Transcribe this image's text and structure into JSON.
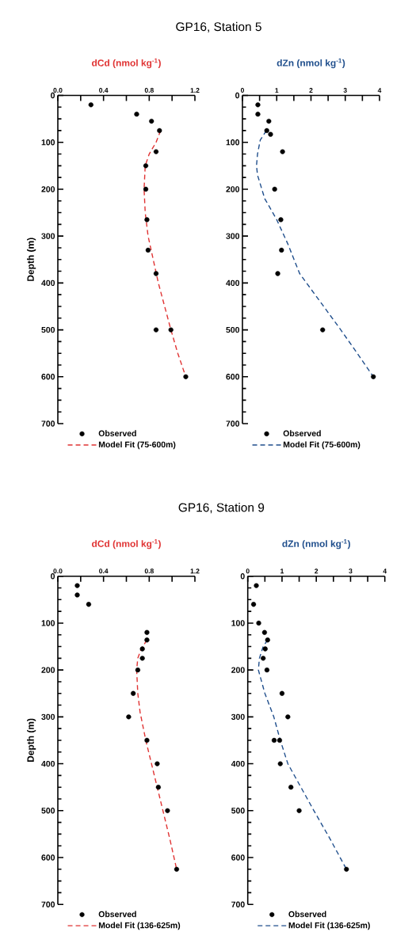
{
  "chart_data": [
    {
      "type": "scatter",
      "title": "GP16, Station 5",
      "xlabel": "dCd (nmol kg$^{-1}$)",
      "ylabel": "Depth (m)",
      "legend": "bottom",
      "xlim": [
        0,
        1.2
      ],
      "xticks": [
        {
          "value": 0,
          "label": "0.0"
        },
        {
          "value": 0.2,
          "label": null
        },
        0.4,
        {
          "value": 0.6,
          "label": null
        },
        0.8,
        {
          "value": 1.0,
          "label": null
        },
        1.2
      ],
      "ylim": [
        700,
        0
      ],
      "yticks": [
        0,
        {
          "value": 25,
          "label": null
        },
        {
          "value": 50,
          "label": null
        },
        {
          "value": 75,
          "label": null
        },
        100,
        {
          "value": 125,
          "label": null
        },
        {
          "value": 150,
          "label": null
        },
        {
          "value": 175,
          "label": null
        },
        200,
        {
          "value": 225,
          "label": null
        },
        {
          "value": 250,
          "label": null
        },
        {
          "value": 275,
          "label": null
        },
        300,
        {
          "value": 325,
          "label": null
        },
        {
          "value": 350,
          "label": null
        },
        {
          "value": 375,
          "label": null
        },
        400,
        {
          "value": 425,
          "label": null
        },
        {
          "value": 450,
          "label": null
        },
        {
          "value": 475,
          "label": null
        },
        500,
        {
          "value": 525,
          "label": null
        },
        {
          "value": 550,
          "label": null
        },
        {
          "value": 575,
          "label": null
        },
        600,
        {
          "value": 625,
          "label": null
        },
        {
          "value": 650,
          "label": null
        },
        {
          "value": 675,
          "label": null
        },
        700
      ],
      "series": [
        {
          "name": "Observed",
          "type": "scatter",
          "marker": "circle",
          "color": "#000000",
          "x": [
            0.29,
            0.69,
            0.82,
            0.89,
            0.86,
            0.77,
            0.77,
            0.78,
            0.79,
            0.86,
            0.86,
            0.99,
            1.12
          ],
          "values": [
            20,
            40,
            55,
            75,
            120,
            150,
            200,
            265,
            330,
            380,
            500,
            500,
            600
          ]
        },
        {
          "name": "Model Fit (75-600m)",
          "type": "line",
          "line_style": "dashed",
          "color": "#e03333",
          "x": [
            0.9,
            0.86,
            0.8,
            0.765,
            0.755,
            0.765,
            0.79,
            0.835,
            0.88,
            0.935,
            0.99,
            1.05,
            1.12
          ],
          "values": [
            75,
            100,
            125,
            150,
            200,
            250,
            300,
            350,
            400,
            450,
            500,
            550,
            600
          ]
        }
      ]
    },
    {
      "type": "scatter",
      "xlabel": "dZn (nmol kg$^{-1}$)",
      "legend": "bottom",
      "xlim": [
        0,
        4
      ],
      "xticks": [
        0,
        {
          "value": 0.5,
          "label": null
        },
        1,
        {
          "value": 1.5,
          "label": null
        },
        2,
        {
          "value": 2.5,
          "label": null
        },
        3,
        {
          "value": 3.5,
          "label": null
        },
        4
      ],
      "ylim": [
        700,
        0
      ],
      "yticks": [
        0,
        {
          "value": 25,
          "label": null
        },
        {
          "value": 50,
          "label": null
        },
        {
          "value": 75,
          "label": null
        },
        100,
        {
          "value": 125,
          "label": null
        },
        {
          "value": 150,
          "label": null
        },
        {
          "value": 175,
          "label": null
        },
        200,
        {
          "value": 225,
          "label": null
        },
        {
          "value": 250,
          "label": null
        },
        {
          "value": 275,
          "label": null
        },
        300,
        {
          "value": 325,
          "label": null
        },
        {
          "value": 350,
          "label": null
        },
        {
          "value": 375,
          "label": null
        },
        400,
        {
          "value": 425,
          "label": null
        },
        {
          "value": 450,
          "label": null
        },
        {
          "value": 475,
          "label": null
        },
        500,
        {
          "value": 525,
          "label": null
        },
        {
          "value": 550,
          "label": null
        },
        {
          "value": 575,
          "label": null
        },
        600,
        {
          "value": 625,
          "label": null
        },
        {
          "value": 650,
          "label": null
        },
        {
          "value": 675,
          "label": null
        },
        700
      ],
      "series": [
        {
          "name": "Observed",
          "type": "scatter",
          "marker": "circle",
          "color": "#000000",
          "x": [
            0.45,
            0.45,
            0.77,
            0.71,
            0.82,
            1.17,
            0.94,
            1.12,
            1.14,
            1.03,
            2.34,
            3.82
          ],
          "values": [
            20,
            40,
            55,
            75,
            83,
            120,
            200,
            265,
            330,
            380,
            500,
            600
          ]
        },
        {
          "name": "Model Fit (75-600m)",
          "type": "line",
          "line_style": "dashed",
          "color": "#1f4e8c",
          "x": [
            0.7,
            0.52,
            0.44,
            0.41,
            0.44,
            0.65,
            1.0,
            1.32,
            1.67,
            2.27,
            2.87,
            3.35,
            3.82
          ],
          "values": [
            75,
            95,
            125,
            150,
            170,
            220,
            265,
            316,
            380,
            440,
            500,
            550,
            600
          ]
        }
      ]
    },
    {
      "type": "scatter",
      "title": "GP16, Station 9",
      "xlabel": "dCd (nmol kg$^{-1}$)",
      "ylabel": "Depth (m)",
      "legend": "bottom",
      "xlim": [
        0,
        1.2
      ],
      "xticks": [
        {
          "value": 0,
          "label": "0.0"
        },
        {
          "value": 0.2,
          "label": null
        },
        0.4,
        {
          "value": 0.6,
          "label": null
        },
        0.8,
        {
          "value": 1.0,
          "label": null
        },
        1.2
      ],
      "ylim": [
        700,
        0
      ],
      "yticks": [
        0,
        {
          "value": 25,
          "label": null
        },
        {
          "value": 50,
          "label": null
        },
        {
          "value": 75,
          "label": null
        },
        100,
        {
          "value": 125,
          "label": null
        },
        {
          "value": 150,
          "label": null
        },
        {
          "value": 175,
          "label": null
        },
        200,
        {
          "value": 225,
          "label": null
        },
        {
          "value": 250,
          "label": null
        },
        {
          "value": 275,
          "label": null
        },
        300,
        {
          "value": 325,
          "label": null
        },
        {
          "value": 350,
          "label": null
        },
        {
          "value": 375,
          "label": null
        },
        400,
        {
          "value": 425,
          "label": null
        },
        {
          "value": 450,
          "label": null
        },
        {
          "value": 475,
          "label": null
        },
        500,
        {
          "value": 525,
          "label": null
        },
        {
          "value": 550,
          "label": null
        },
        {
          "value": 575,
          "label": null
        },
        600,
        {
          "value": 625,
          "label": null
        },
        {
          "value": 650,
          "label": null
        },
        {
          "value": 675,
          "label": null
        },
        700
      ],
      "series": [
        {
          "name": "Observed",
          "type": "scatter",
          "marker": "circle",
          "color": "#000000",
          "x": [
            0.17,
            0.17,
            0.27,
            0.78,
            0.78,
            0.74,
            0.74,
            0.7,
            0.66,
            0.62,
            0.78,
            0.87,
            0.88,
            0.96,
            1.04
          ],
          "values": [
            20,
            40,
            60,
            120,
            136,
            155,
            175,
            200,
            250,
            300,
            350,
            400,
            450,
            500,
            625
          ]
        },
        {
          "name": "Model Fit (136-625m)",
          "type": "line",
          "line_style": "dashed",
          "color": "#e03333",
          "x": [
            0.78,
            0.73,
            0.7,
            0.69,
            0.7,
            0.72,
            0.77,
            0.82,
            0.87,
            0.92,
            0.98,
            1.04
          ],
          "values": [
            136,
            155,
            175,
            200,
            250,
            290,
            350,
            400,
            450,
            500,
            560,
            625
          ]
        }
      ]
    },
    {
      "type": "scatter",
      "xlabel": "dZn (nmol kg$^{-1}$)",
      "legend": "bottom",
      "xlim": [
        0,
        4
      ],
      "xticks": [
        0,
        {
          "value": 0.5,
          "label": null
        },
        1,
        {
          "value": 1.5,
          "label": null
        },
        2,
        {
          "value": 2.5,
          "label": null
        },
        3,
        {
          "value": 3.5,
          "label": null
        },
        4
      ],
      "ylim": [
        700,
        0
      ],
      "yticks": [
        0,
        {
          "value": 25,
          "label": null
        },
        {
          "value": 50,
          "label": null
        },
        {
          "value": 75,
          "label": null
        },
        100,
        {
          "value": 125,
          "label": null
        },
        {
          "value": 150,
          "label": null
        },
        {
          "value": 175,
          "label": null
        },
        200,
        {
          "value": 225,
          "label": null
        },
        {
          "value": 250,
          "label": null
        },
        {
          "value": 275,
          "label": null
        },
        300,
        {
          "value": 325,
          "label": null
        },
        {
          "value": 350,
          "label": null
        },
        {
          "value": 375,
          "label": null
        },
        400,
        {
          "value": 425,
          "label": null
        },
        {
          "value": 450,
          "label": null
        },
        {
          "value": 475,
          "label": null
        },
        500,
        {
          "value": 525,
          "label": null
        },
        {
          "value": 550,
          "label": null
        },
        {
          "value": 575,
          "label": null
        },
        600,
        {
          "value": 625,
          "label": null
        },
        {
          "value": 650,
          "label": null
        },
        {
          "value": 675,
          "label": null
        },
        700
      ],
      "series": [
        {
          "name": "Observed",
          "type": "scatter",
          "marker": "circle",
          "color": "#000000",
          "x": [
            0.25,
            0.17,
            0.32,
            0.49,
            0.58,
            0.51,
            0.45,
            0.56,
            1.0,
            1.17,
            0.77,
            0.93,
            0.95,
            1.26,
            1.5,
            2.88
          ],
          "values": [
            20,
            60,
            100,
            120,
            136,
            155,
            175,
            200,
            250,
            300,
            350,
            350,
            400,
            450,
            500,
            625
          ]
        },
        {
          "name": "Model Fit (136-625m)",
          "type": "line",
          "line_style": "dashed",
          "color": "#1f4e8c",
          "x": [
            0.58,
            0.45,
            0.34,
            0.31,
            0.5,
            0.76,
            0.95,
            1.17,
            1.55,
            1.93,
            2.4,
            2.88
          ],
          "values": [
            136,
            150,
            175,
            200,
            250,
            300,
            350,
            400,
            450,
            500,
            560,
            625
          ]
        }
      ]
    }
  ]
}
